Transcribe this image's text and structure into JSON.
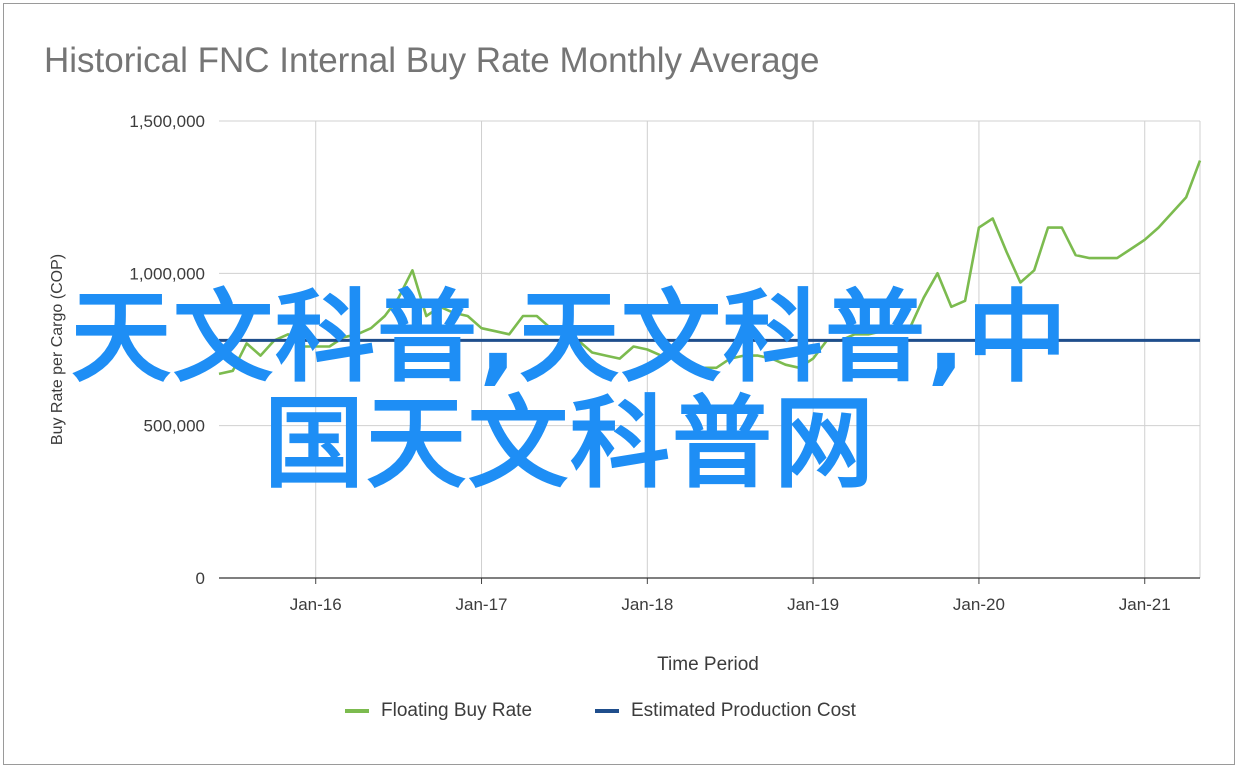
{
  "chart_data": {
    "type": "line",
    "title": "Historical FNC Internal Buy Rate Monthly Average",
    "xlabel": "Time Period",
    "ylabel": "Buy Rate per Cargo (COP)",
    "ylim": [
      0,
      1500000
    ],
    "yticks": [
      0,
      500000,
      1000000,
      1500000
    ],
    "ytick_labels": [
      "0",
      "500,000",
      "1,000,000",
      "1,500,000"
    ],
    "xlim": [
      "2015-06",
      "2021-05"
    ],
    "xticks": [
      "2016-01",
      "2017-01",
      "2018-01",
      "2019-01",
      "2020-01",
      "2021-01"
    ],
    "xtick_labels": [
      "Jan-16",
      "Jan-17",
      "Jan-18",
      "Jan-19",
      "Jan-20",
      "Jan-21"
    ],
    "grid": true,
    "legend_position": "bottom",
    "series": [
      {
        "name": "Floating Buy Rate",
        "color": "#7cbb4f",
        "x": [
          "2015-06",
          "2015-07",
          "2015-08",
          "2015-09",
          "2015-10",
          "2015-11",
          "2015-12",
          "2016-01",
          "2016-02",
          "2016-03",
          "2016-04",
          "2016-05",
          "2016-06",
          "2016-07",
          "2016-08",
          "2016-09",
          "2016-10",
          "2016-11",
          "2016-12",
          "2017-01",
          "2017-02",
          "2017-03",
          "2017-04",
          "2017-05",
          "2017-06",
          "2017-07",
          "2017-08",
          "2017-09",
          "2017-10",
          "2017-11",
          "2017-12",
          "2018-01",
          "2018-02",
          "2018-03",
          "2018-04",
          "2018-05",
          "2018-06",
          "2018-07",
          "2018-08",
          "2018-09",
          "2018-10",
          "2018-11",
          "2018-12",
          "2019-01",
          "2019-02",
          "2019-03",
          "2019-04",
          "2019-05",
          "2019-06",
          "2019-07",
          "2019-08",
          "2019-09",
          "2019-10",
          "2019-11",
          "2019-12",
          "2020-01",
          "2020-02",
          "2020-03",
          "2020-04",
          "2020-05",
          "2020-06",
          "2020-07",
          "2020-08",
          "2020-09",
          "2020-10",
          "2020-11",
          "2020-12",
          "2021-01",
          "2021-02",
          "2021-03",
          "2021-04",
          "2021-05"
        ],
        "values": [
          670000,
          680000,
          770000,
          730000,
          780000,
          800000,
          760000,
          760000,
          760000,
          790000,
          800000,
          820000,
          860000,
          920000,
          1010000,
          860000,
          890000,
          870000,
          860000,
          820000,
          810000,
          800000,
          860000,
          860000,
          820000,
          800000,
          780000,
          740000,
          730000,
          720000,
          760000,
          750000,
          730000,
          720000,
          700000,
          690000,
          690000,
          720000,
          730000,
          730000,
          720000,
          700000,
          690000,
          720000,
          780000,
          780000,
          800000,
          800000,
          810000,
          820000,
          820000,
          920000,
          1000000,
          890000,
          910000,
          1150000,
          1180000,
          1070000,
          970000,
          1010000,
          1150000,
          1150000,
          1060000,
          1050000,
          1050000,
          1050000,
          1080000,
          1110000,
          1150000,
          1200000,
          1250000,
          1370000
        ]
      },
      {
        "name": "Estimated Production Cost",
        "color": "#1f4e8c",
        "x": [
          "2015-06",
          "2021-05"
        ],
        "values": [
          780000,
          780000
        ]
      }
    ]
  },
  "watermark": {
    "line1": "天文科普,天文科普,中",
    "line2": "国天文科普网"
  }
}
